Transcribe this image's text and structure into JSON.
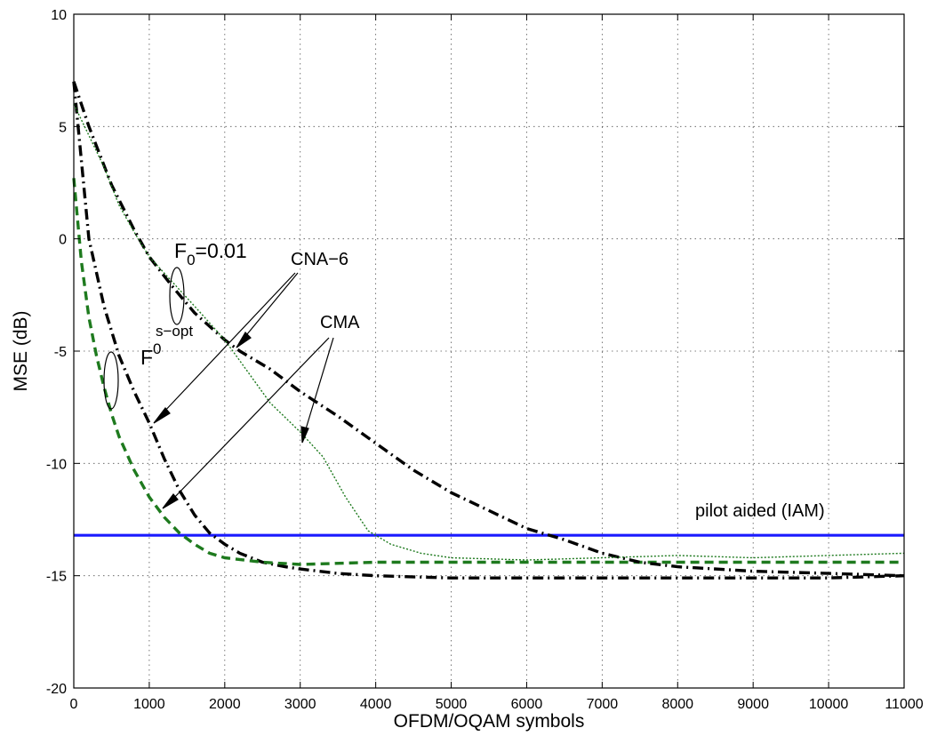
{
  "chart_data": {
    "type": "line",
    "xlabel": "OFDM/OQAM symbols",
    "ylabel": "MSE (dB)",
    "xlim": [
      0,
      11000
    ],
    "ylim": [
      -20,
      10
    ],
    "xticks": [
      0,
      1000,
      2000,
      3000,
      4000,
      5000,
      6000,
      7000,
      8000,
      9000,
      10000,
      11000
    ],
    "yticks": [
      -20,
      -15,
      -10,
      -5,
      0,
      5,
      10
    ],
    "grid": true,
    "series": [
      {
        "color": "#1a1aff",
        "style": "solid",
        "x": [
          0,
          11000
        ],
        "y": [
          -13.2,
          -13.2
        ]
      },
      {
        "color": "#000000",
        "style": "dashdot",
        "x": [
          0,
          100,
          200,
          400,
          600,
          800,
          1000,
          1200,
          1400,
          1600,
          1800,
          2000,
          2200,
          2500,
          2800,
          3000,
          3500,
          4000,
          5000,
          6000,
          7000,
          8000,
          9000,
          10000,
          11000
        ],
        "y": [
          7,
          3.5,
          0,
          -3,
          -5.2,
          -6.8,
          -8.2,
          -9.8,
          -11.2,
          -12.3,
          -13.1,
          -13.6,
          -14,
          -14.4,
          -14.6,
          -14.7,
          -14.9,
          -15,
          -15.1,
          -15.1,
          -15.1,
          -15.1,
          -15.1,
          -15.1,
          -15
        ]
      },
      {
        "color": "#1e7a1e",
        "style": "dashed",
        "x": [
          0,
          100,
          200,
          300,
          400,
          500,
          600,
          800,
          1000,
          1200,
          1400,
          1600,
          1800,
          2000,
          2500,
          3000,
          4000,
          5000,
          6000,
          7000,
          8000,
          9000,
          10000,
          11000
        ],
        "y": [
          2.7,
          -1,
          -3.5,
          -5.2,
          -6.6,
          -7.8,
          -8.8,
          -10.3,
          -11.5,
          -12.4,
          -13.1,
          -13.6,
          -14,
          -14.2,
          -14.4,
          -14.5,
          -14.4,
          -14.4,
          -14.4,
          -14.4,
          -14.4,
          -14.4,
          -14.4,
          -14.4
        ]
      },
      {
        "color": "#000000",
        "style": "dashdot",
        "x": [
          0,
          200,
          500,
          800,
          1000,
          1300,
          1600,
          2000,
          2200,
          2600,
          3000,
          3500,
          4000,
          4500,
          5000,
          5500,
          6000,
          6500,
          7000,
          7500,
          8000,
          9000,
          10000,
          11000
        ],
        "y": [
          7,
          5,
          2.4,
          0.4,
          -0.8,
          -2.1,
          -3.3,
          -4.5,
          -5,
          -5.8,
          -6.8,
          -7.9,
          -9.1,
          -10.3,
          -11.3,
          -12.1,
          -12.9,
          -13.4,
          -14,
          -14.4,
          -14.6,
          -14.8,
          -14.9,
          -15
        ]
      },
      {
        "color": "#1e7a1e",
        "style": "dotted",
        "x": [
          0,
          200,
          400,
          600,
          800,
          1000,
          1300,
          1600,
          2000,
          2300,
          2600,
          3000,
          3300,
          3600,
          3900,
          4200,
          4600,
          5000,
          6000,
          7000,
          8000,
          9000,
          10000,
          11000
        ],
        "y": [
          6,
          4.6,
          3.2,
          1.5,
          0.3,
          -0.8,
          -1.9,
          -3,
          -4.5,
          -5.9,
          -7.3,
          -8.6,
          -9.7,
          -11.5,
          -13,
          -13.6,
          -14,
          -14.2,
          -14.3,
          -14.2,
          -14.1,
          -14.2,
          -14.1,
          -14
        ]
      }
    ],
    "annotations": {
      "f0_fixed_main": "F",
      "f0_fixed_sub": "0",
      "f0_fixed_rest": "=0.01",
      "f0_opt_main": "F",
      "f0_opt_sub": "0",
      "f0_opt_sup": "s−opt",
      "cna6": "CNA−6",
      "cma": "CMA",
      "pilot": "pilot aided (IAM)"
    }
  }
}
